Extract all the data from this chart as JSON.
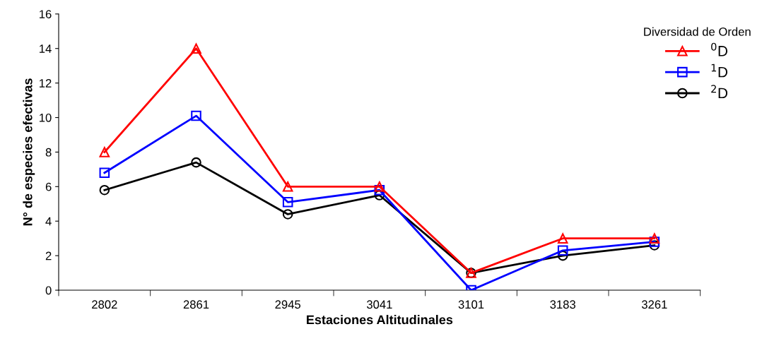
{
  "chart_data": {
    "type": "line",
    "xlabel": "Estaciones Altitudinales",
    "ylabel": "N° de especies efectivas",
    "legend_title": "Diversidad de Orden",
    "categories": [
      "2802",
      "2861",
      "2945",
      "3041",
      "3101",
      "3183",
      "3261"
    ],
    "series": [
      {
        "name": "$^{0}$D",
        "color": "#ff0000",
        "marker": "triangle",
        "values": [
          8,
          14,
          6,
          6,
          1,
          3,
          3
        ]
      },
      {
        "name": "$^{1}$D",
        "color": "#0000ff",
        "marker": "square",
        "values": [
          6.8,
          10.1,
          5.1,
          5.8,
          0,
          2.3,
          2.8
        ]
      },
      {
        "name": "$^{2}$D",
        "color": "#000000",
        "marker": "circle",
        "values": [
          5.8,
          7.4,
          4.4,
          5.5,
          1.0,
          2.0,
          2.6
        ]
      }
    ],
    "ylim": [
      0,
      16
    ],
    "yticks": [
      0,
      2,
      4,
      6,
      8,
      10,
      12,
      14,
      16
    ],
    "grid": false,
    "legend": "top right",
    "line_style": "solid"
  }
}
